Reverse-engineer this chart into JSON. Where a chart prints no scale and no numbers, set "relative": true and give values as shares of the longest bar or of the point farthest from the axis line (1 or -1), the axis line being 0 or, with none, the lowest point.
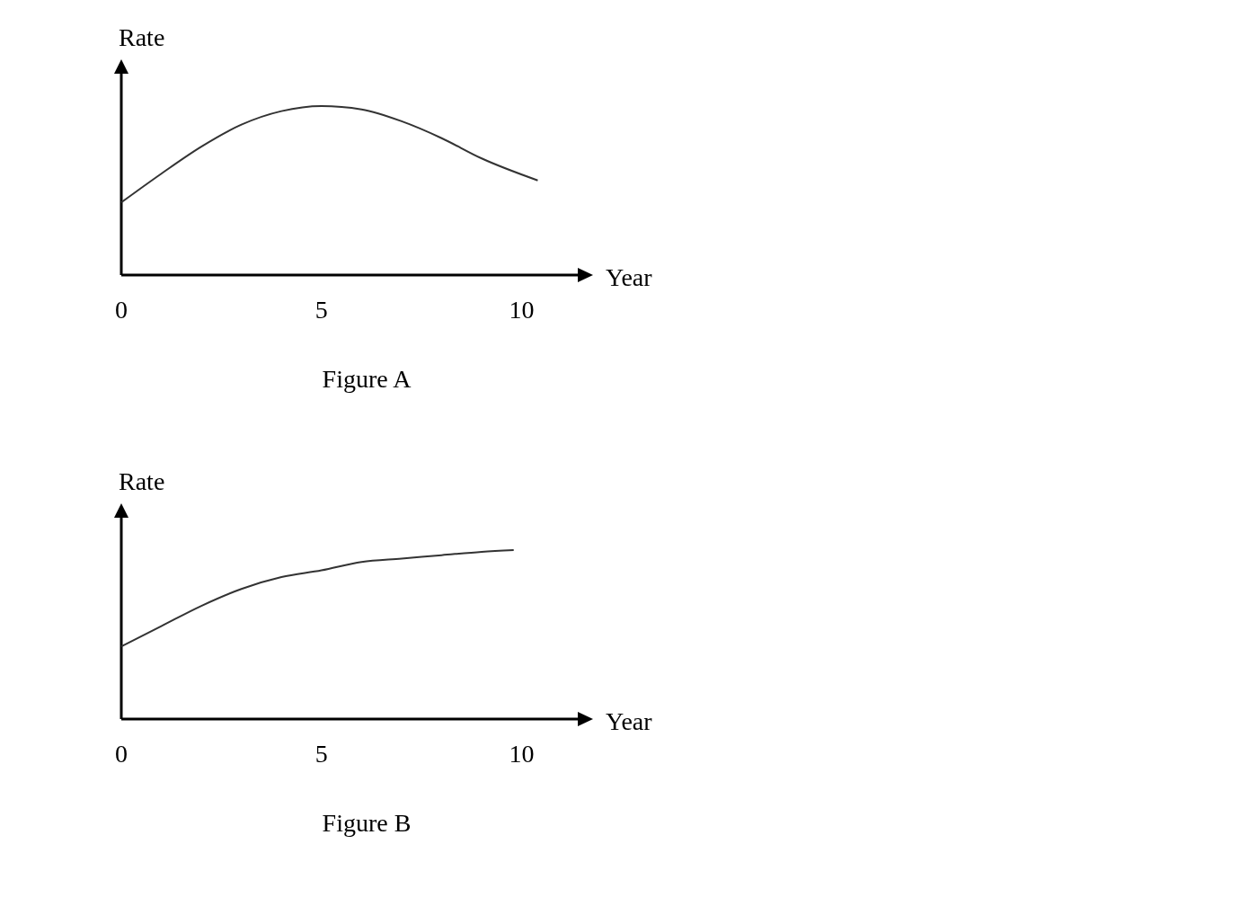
{
  "chart_data": [
    {
      "type": "line",
      "title": "Figure A",
      "xlabel": "Year",
      "ylabel": "Rate",
      "relative": true,
      "xlim": [
        0,
        11.4
      ],
      "xticks": [
        0,
        5,
        10
      ],
      "x": [
        0,
        1,
        2,
        3,
        4,
        5,
        6,
        7,
        8,
        9,
        10.4
      ],
      "series": [
        {
          "color": "#333333",
          "values": [
            0.43,
            0.6,
            0.76,
            0.89,
            0.97,
            1,
            0.98,
            0.91,
            0.81,
            0.69,
            0.56
          ]
        }
      ]
    },
    {
      "type": "line",
      "title": "Figure B",
      "xlabel": "Year",
      "ylabel": "Rate",
      "relative": true,
      "xlim": [
        0,
        11.4
      ],
      "xticks": [
        0,
        5,
        10
      ],
      "x": [
        0,
        1,
        2,
        3,
        4,
        5,
        6,
        7,
        8,
        9,
        9.8
      ],
      "series": [
        {
          "color": "#333333",
          "values": [
            0.43,
            0.55,
            0.67,
            0.77,
            0.84,
            0.88,
            0.93,
            0.95,
            0.97,
            0.99,
            1
          ]
        }
      ]
    }
  ]
}
